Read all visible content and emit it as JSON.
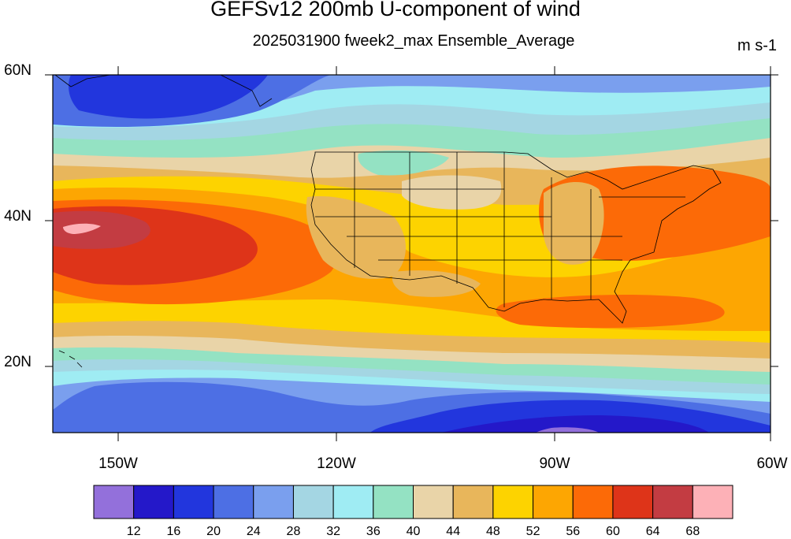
{
  "title": "GEFSv12 200mb U-component of wind",
  "subtitle": "2025031900 fweek2_max Ensemble_Average",
  "units": "m s-1",
  "lat_labels": [
    "60N",
    "40N",
    "20N"
  ],
  "lon_labels": [
    "150W",
    "120W",
    "90W",
    "60W"
  ],
  "colorbar": {
    "colors": [
      "#9370db",
      "#2418c9",
      "#2236dd",
      "#4d6fe4",
      "#7a9fee",
      "#a4d6e3",
      "#9fecf3",
      "#94e2c3",
      "#e9d4a8",
      "#e8b65b",
      "#fdd300",
      "#fda602",
      "#fc6a07",
      "#de3419",
      "#c33c42",
      "#fdb1b7"
    ],
    "labels": [
      "12",
      "16",
      "20",
      "24",
      "28",
      "32",
      "36",
      "40",
      "44",
      "48",
      "52",
      "56",
      "60",
      "64",
      "68"
    ]
  },
  "map_extent": {
    "lon_min": -160,
    "lon_max": -60,
    "lat_min": 10,
    "lat_max": 60
  }
}
